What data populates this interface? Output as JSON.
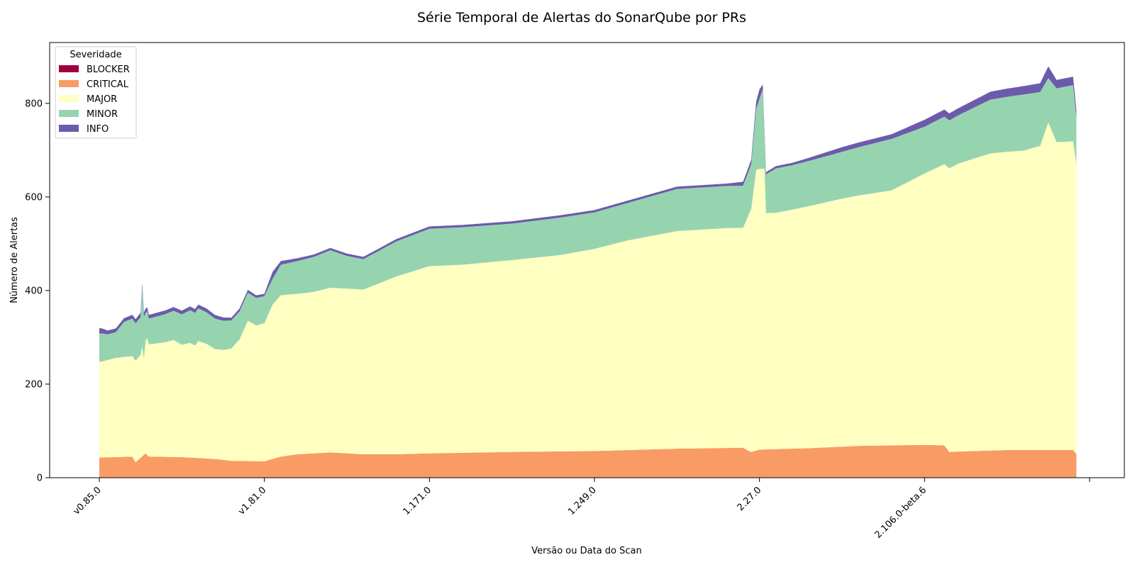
{
  "chart_data": {
    "type": "area",
    "stacked": true,
    "title": "Série Temporal de Alertas do SonarQube por PRs",
    "xlabel": "Versão ou Data do Scan",
    "ylabel": "Número de Alertas",
    "ylim": [
      0,
      930
    ],
    "yticks": [
      0,
      200,
      400,
      600,
      800
    ],
    "n_points": 600,
    "xticks": [
      {
        "index": 0,
        "label": "v0.85.0"
      },
      {
        "index": 100,
        "label": "v1.81.0"
      },
      {
        "index": 200,
        "label": "1.171.0"
      },
      {
        "index": 300,
        "label": "1.249.0"
      },
      {
        "index": 400,
        "label": "2.27.0"
      },
      {
        "index": 500,
        "label": "2.106.0-beta.6"
      },
      {
        "index": 600,
        "label": ""
      }
    ],
    "grid": false,
    "legend": {
      "title": "Severidade",
      "placement": "top-left"
    },
    "series": [
      {
        "name": "BLOCKER",
        "color": "#9e0142",
        "points": [
          [
            0,
            0
          ],
          [
            592,
            0
          ]
        ]
      },
      {
        "name": "CRITICAL",
        "color": "#f99b64",
        "points": [
          [
            0,
            43
          ],
          [
            20,
            45
          ],
          [
            22,
            33
          ],
          [
            28,
            52
          ],
          [
            30,
            45
          ],
          [
            50,
            44
          ],
          [
            70,
            40
          ],
          [
            80,
            36
          ],
          [
            100,
            35
          ],
          [
            105,
            40
          ],
          [
            110,
            45
          ],
          [
            120,
            50
          ],
          [
            140,
            54
          ],
          [
            160,
            50
          ],
          [
            180,
            50
          ],
          [
            200,
            52
          ],
          [
            250,
            55
          ],
          [
            300,
            57
          ],
          [
            350,
            62
          ],
          [
            390,
            64
          ],
          [
            393,
            58
          ],
          [
            395,
            55
          ],
          [
            400,
            60
          ],
          [
            430,
            63
          ],
          [
            460,
            68
          ],
          [
            500,
            70
          ],
          [
            512,
            69
          ],
          [
            515,
            55
          ],
          [
            530,
            57
          ],
          [
            550,
            59
          ],
          [
            590,
            59
          ],
          [
            592,
            50
          ]
        ]
      },
      {
        "name": "MAJOR",
        "color": "#ffffc2",
        "points": [
          [
            0,
            205
          ],
          [
            1,
            205
          ],
          [
            2,
            205
          ],
          [
            5,
            208
          ],
          [
            10,
            212
          ],
          [
            20,
            215
          ],
          [
            25,
            220
          ],
          [
            26,
            235
          ],
          [
            27,
            205
          ],
          [
            28,
            240
          ],
          [
            29,
            250
          ],
          [
            30,
            240
          ],
          [
            40,
            245
          ],
          [
            45,
            250
          ],
          [
            50,
            240
          ],
          [
            55,
            245
          ],
          [
            58,
            240
          ],
          [
            60,
            250
          ],
          [
            65,
            245
          ],
          [
            70,
            235
          ],
          [
            75,
            235
          ],
          [
            80,
            240
          ],
          [
            85,
            260
          ],
          [
            90,
            300
          ],
          [
            95,
            290
          ],
          [
            100,
            295
          ],
          [
            105,
            330
          ],
          [
            110,
            345
          ],
          [
            120,
            343
          ],
          [
            130,
            345
          ],
          [
            140,
            352
          ],
          [
            150,
            352
          ],
          [
            160,
            352
          ],
          [
            180,
            380
          ],
          [
            200,
            400
          ],
          [
            220,
            402
          ],
          [
            250,
            410
          ],
          [
            280,
            420
          ],
          [
            300,
            432
          ],
          [
            320,
            448
          ],
          [
            350,
            465
          ],
          [
            380,
            470
          ],
          [
            390,
            470
          ],
          [
            395,
            520
          ],
          [
            398,
            600
          ],
          [
            400,
            600
          ],
          [
            403,
            600
          ],
          [
            404,
            505
          ],
          [
            410,
            505
          ],
          [
            420,
            511
          ],
          [
            450,
            530
          ],
          [
            480,
            545
          ],
          [
            500,
            580
          ],
          [
            520,
            615
          ],
          [
            540,
            635
          ],
          [
            560,
            640
          ],
          [
            570,
            650
          ],
          [
            575,
            700
          ],
          [
            580,
            658
          ],
          [
            590,
            660
          ],
          [
            592,
            620
          ]
        ]
      },
      {
        "name": "MINOR",
        "color": "#96d4af",
        "points": [
          [
            0,
            60
          ],
          [
            2,
            60
          ],
          [
            5,
            55
          ],
          [
            10,
            55
          ],
          [
            15,
            75
          ],
          [
            20,
            80
          ],
          [
            25,
            80
          ],
          [
            26,
            125
          ],
          [
            27,
            90
          ],
          [
            28,
            60
          ],
          [
            30,
            55
          ],
          [
            40,
            60
          ],
          [
            50,
            65
          ],
          [
            55,
            70
          ],
          [
            60,
            70
          ],
          [
            70,
            65
          ],
          [
            80,
            60
          ],
          [
            90,
            60
          ],
          [
            100,
            58
          ],
          [
            105,
            55
          ],
          [
            110,
            65
          ],
          [
            120,
            70
          ],
          [
            130,
            75
          ],
          [
            140,
            80
          ],
          [
            150,
            70
          ],
          [
            160,
            65
          ],
          [
            170,
            70
          ],
          [
            180,
            75
          ],
          [
            200,
            80
          ],
          [
            220,
            80
          ],
          [
            250,
            78
          ],
          [
            280,
            80
          ],
          [
            300,
            78
          ],
          [
            320,
            80
          ],
          [
            350,
            90
          ],
          [
            380,
            90
          ],
          [
            390,
            90
          ],
          [
            395,
            95
          ],
          [
            398,
            130
          ],
          [
            400,
            150
          ],
          [
            402,
            170
          ],
          [
            403,
            80
          ],
          [
            405,
            85
          ],
          [
            410,
            95
          ],
          [
            420,
            95
          ],
          [
            450,
            100
          ],
          [
            480,
            110
          ],
          [
            500,
            100
          ],
          [
            520,
            103
          ],
          [
            540,
            115
          ],
          [
            560,
            120
          ],
          [
            570,
            115
          ],
          [
            575,
            95
          ],
          [
            580,
            115
          ],
          [
            590,
            120
          ],
          [
            592,
            100
          ]
        ]
      },
      {
        "name": "INFO",
        "color": "#6c5bac",
        "points": [
          [
            0,
            12
          ],
          [
            5,
            8
          ],
          [
            10,
            8
          ],
          [
            20,
            8
          ],
          [
            25,
            10
          ],
          [
            30,
            8
          ],
          [
            40,
            8
          ],
          [
            50,
            8
          ],
          [
            60,
            8
          ],
          [
            70,
            8
          ],
          [
            80,
            6
          ],
          [
            90,
            6
          ],
          [
            100,
            5
          ],
          [
            105,
            15
          ],
          [
            110,
            8
          ],
          [
            120,
            6
          ],
          [
            130,
            5
          ],
          [
            140,
            5
          ],
          [
            160,
            5
          ],
          [
            200,
            5
          ],
          [
            250,
            5
          ],
          [
            300,
            5
          ],
          [
            320,
            5
          ],
          [
            350,
            5
          ],
          [
            380,
            5
          ],
          [
            395,
            10
          ],
          [
            400,
            20
          ],
          [
            403,
            5
          ],
          [
            420,
            5
          ],
          [
            450,
            10
          ],
          [
            480,
            10
          ],
          [
            500,
            15
          ],
          [
            520,
            15
          ],
          [
            540,
            17
          ],
          [
            560,
            18
          ],
          [
            570,
            19
          ],
          [
            575,
            25
          ],
          [
            580,
            18
          ],
          [
            590,
            18
          ],
          [
            592,
            15
          ]
        ]
      }
    ]
  }
}
